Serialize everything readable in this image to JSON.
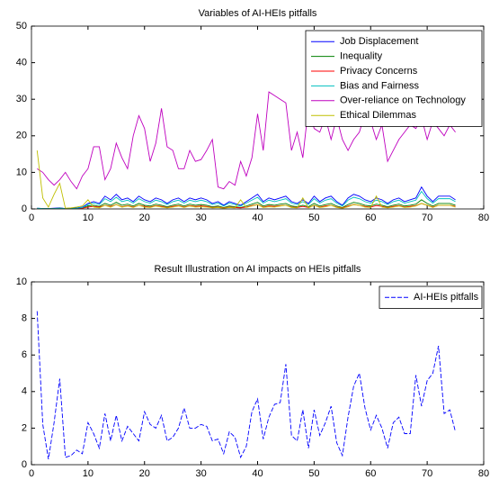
{
  "chart_data": [
    {
      "type": "line",
      "title": "Variables of AI-HEIs pitfalls",
      "x": [
        1,
        2,
        3,
        4,
        5,
        6,
        7,
        8,
        9,
        10,
        11,
        12,
        13,
        14,
        15,
        16,
        17,
        18,
        19,
        20,
        21,
        22,
        23,
        24,
        25,
        26,
        27,
        28,
        29,
        30,
        31,
        32,
        33,
        34,
        35,
        36,
        37,
        38,
        39,
        40,
        41,
        42,
        43,
        44,
        45,
        46,
        47,
        48,
        49,
        50,
        51,
        52,
        53,
        54,
        55,
        56,
        57,
        58,
        59,
        60,
        61,
        62,
        63,
        64,
        65,
        66,
        67,
        68,
        69,
        70,
        71,
        72,
        73,
        74,
        75
      ],
      "series": [
        {
          "name": "Job Displacement",
          "color": "#0000ff",
          "values": [
            0.2,
            0.1,
            0.1,
            0.2,
            0.3,
            0.1,
            0.2,
            0.3,
            0.5,
            1.5,
            2,
            1.5,
            3.5,
            2.5,
            4,
            2.5,
            3,
            2,
            3.5,
            2.5,
            2,
            3,
            2.5,
            1.5,
            2.5,
            3,
            2,
            3,
            2.5,
            3,
            2.5,
            1.5,
            2,
            1,
            2,
            1.5,
            1,
            2,
            3,
            4,
            2,
            3,
            2.5,
            3,
            3.5,
            2,
            1.5,
            2.5,
            1.5,
            3.5,
            2,
            3,
            3.5,
            2,
            1,
            3,
            4,
            3.5,
            2.5,
            2,
            3,
            2.5,
            1.5,
            2.5,
            3,
            2,
            2.5,
            3,
            6,
            3.5,
            2,
            3.5,
            3.5,
            3.5,
            2.5
          ]
        },
        {
          "name": "Inequality",
          "color": "#008000",
          "values": [
            0.1,
            0.1,
            0.1,
            0.1,
            0.2,
            0.1,
            0.1,
            0.2,
            0.3,
            0.8,
            1,
            0.7,
            1.5,
            1,
            1.8,
            1,
            1.3,
            0.8,
            1.5,
            1,
            0.8,
            1.3,
            1,
            0.6,
            1,
            1.3,
            0.8,
            1.3,
            1,
            1.2,
            1,
            0.6,
            0.8,
            0.4,
            0.8,
            0.6,
            0.4,
            0.8,
            1.3,
            1.8,
            0.8,
            1.2,
            1,
            1.3,
            1.5,
            0.8,
            0.6,
            1,
            0.6,
            1.5,
            0.8,
            1.2,
            1.5,
            0.8,
            0.4,
            1.2,
            1.8,
            1.5,
            1,
            0.8,
            1.3,
            1,
            0.6,
            1,
            1.3,
            0.8,
            1,
            1.3,
            2.5,
            1.5,
            0.8,
            1.5,
            1.5,
            1.5,
            1
          ]
        },
        {
          "name": "Privacy Concerns",
          "color": "#ff0000",
          "values": [
            0.1,
            0.1,
            0.1,
            0.1,
            0.1,
            0.1,
            0.1,
            0.1,
            0.2,
            0.5,
            0.7,
            0.5,
            1,
            0.7,
            1.2,
            0.6,
            0.9,
            0.5,
            1,
            0.7,
            0.5,
            0.9,
            0.7,
            0.4,
            0.7,
            0.9,
            0.5,
            0.9,
            0.7,
            0.8,
            0.7,
            0.4,
            0.5,
            0.3,
            0.5,
            0.4,
            0.3,
            0.5,
            0.9,
            1.2,
            0.5,
            0.8,
            0.7,
            0.9,
            1,
            0.5,
            0.4,
            0.7,
            0.4,
            1,
            0.5,
            0.8,
            1,
            0.5,
            0.3,
            0.8,
            1.2,
            1,
            0.7,
            0.5,
            0.9,
            0.7,
            0.4,
            0.7,
            0.9,
            0.5,
            0.7,
            0.9,
            1.5,
            1,
            0.5,
            1,
            1,
            1,
            0.7
          ]
        },
        {
          "name": "Bias and Fairness",
          "color": "#00bfbf",
          "values": [
            0.2,
            0.1,
            0.1,
            0.1,
            0.2,
            0.1,
            0.1,
            0.2,
            0.4,
            1.2,
            1.6,
            1.2,
            2.8,
            2,
            3.2,
            2,
            2.4,
            1.6,
            2.8,
            2,
            1.6,
            2.4,
            2,
            1.2,
            2,
            2.4,
            1.6,
            2.4,
            2,
            2.4,
            2,
            1.2,
            1.6,
            0.8,
            1.6,
            1.2,
            0.8,
            1.6,
            2.4,
            3.2,
            1.6,
            2.4,
            2,
            2.4,
            2.8,
            1.6,
            1.2,
            2,
            1.2,
            2.8,
            1.6,
            2.4,
            2.8,
            1.6,
            0.8,
            2.4,
            3.2,
            2.8,
            2,
            1.6,
            2.4,
            2,
            1.2,
            2,
            2.4,
            1.6,
            2,
            2.4,
            4.8,
            2.8,
            1.6,
            2.8,
            2.8,
            2.8,
            2
          ]
        },
        {
          "name": "Over-reliance on Technology",
          "color": "#bf00bf",
          "values": [
            11,
            10,
            8,
            6.5,
            8,
            10,
            7.5,
            5.5,
            9,
            11,
            17,
            17,
            8,
            11,
            18,
            14,
            11,
            20,
            25.5,
            22,
            13,
            18,
            27.5,
            17,
            16,
            11,
            11,
            16,
            13,
            13.5,
            16,
            19,
            6,
            5.5,
            7.5,
            6.5,
            13,
            9,
            14,
            26,
            16,
            32,
            31,
            30,
            29,
            16,
            21,
            14,
            28,
            22,
            21,
            25,
            19,
            25,
            19,
            16,
            19,
            21,
            26,
            24,
            19,
            23,
            13,
            16,
            19,
            21,
            23,
            22,
            25,
            19,
            24,
            22,
            20,
            23,
            21
          ]
        },
        {
          "name": "Ethical Dilemmas",
          "color": "#bfbf00",
          "values": [
            16,
            3,
            0.5,
            4,
            7,
            0.2,
            0.3,
            0.5,
            0.8,
            2.5,
            0.5,
            0.3,
            1,
            0.5,
            1.2,
            0.5,
            0.8,
            0.4,
            1,
            0.5,
            0.4,
            0.8,
            0.5,
            0.3,
            0.5,
            0.8,
            0.4,
            0.8,
            0.5,
            0.6,
            0.5,
            0.3,
            0.4,
            0.2,
            0.4,
            0.3,
            2.5,
            0.4,
            0.8,
            1.2,
            0.4,
            0.6,
            0.5,
            0.8,
            1,
            0.4,
            0.3,
            3,
            0.3,
            1,
            0.4,
            0.6,
            1,
            0.4,
            0.2,
            0.6,
            1.2,
            1,
            0.5,
            0.4,
            3.5,
            0.5,
            0.3,
            0.5,
            0.8,
            0.4,
            0.5,
            0.8,
            1.5,
            1,
            0.4,
            1,
            1,
            1,
            0.5
          ]
        }
      ],
      "xlim": [
        0,
        80
      ],
      "ylim": [
        0,
        50
      ],
      "xticks": [
        0,
        10,
        20,
        30,
        40,
        50,
        60,
        70,
        80
      ],
      "yticks": [
        0,
        10,
        20,
        30,
        40,
        50
      ],
      "legend": "upper right"
    },
    {
      "type": "line",
      "title": "Result Illustration on AI impacts on HEIs pitfalls",
      "x": [
        1,
        2,
        3,
        4,
        5,
        6,
        7,
        8,
        9,
        10,
        11,
        12,
        13,
        14,
        15,
        16,
        17,
        18,
        19,
        20,
        21,
        22,
        23,
        24,
        25,
        26,
        27,
        28,
        29,
        30,
        31,
        32,
        33,
        34,
        35,
        36,
        37,
        38,
        39,
        40,
        41,
        42,
        43,
        44,
        45,
        46,
        47,
        48,
        49,
        50,
        51,
        52,
        53,
        54,
        55,
        56,
        57,
        58,
        59,
        60,
        61,
        62,
        63,
        64,
        65,
        66,
        67,
        68,
        69,
        70,
        71,
        72,
        73,
        74,
        75
      ],
      "series": [
        {
          "name": "AI-HEIs pitfalls",
          "color": "#0000ff",
          "linestyle": "dashed",
          "values": [
            8.4,
            2.2,
            0.3,
            2.3,
            4.7,
            0.4,
            0.5,
            0.8,
            0.6,
            2.3,
            1.7,
            0.9,
            2.8,
            1.3,
            2.7,
            1.3,
            2.1,
            1.7,
            1.3,
            2.9,
            2.2,
            2.0,
            2.7,
            1.3,
            1.5,
            2.0,
            3.1,
            2.0,
            2.0,
            2.2,
            2.1,
            1.3,
            1.4,
            0.6,
            1.8,
            1.5,
            0.4,
            1.0,
            2.9,
            3.6,
            1.4,
            2.6,
            3.3,
            3.4,
            5.5,
            1.6,
            1.3,
            3.0,
            0.9,
            3.0,
            1.6,
            2.3,
            3.2,
            1.2,
            0.5,
            2.6,
            4.3,
            5.0,
            3.1,
            1.9,
            2.7,
            2.0,
            0.9,
            2.3,
            2.6,
            1.7,
            1.7,
            4.9,
            3.2,
            4.6,
            5.0,
            6.5,
            2.8,
            3.0,
            1.8
          ]
        }
      ],
      "xlim": [
        0,
        80
      ],
      "ylim": [
        0,
        10
      ],
      "xticks": [
        0,
        10,
        20,
        30,
        40,
        50,
        60,
        70,
        80
      ],
      "yticks": [
        0,
        2,
        4,
        6,
        8,
        10
      ],
      "legend": "upper right"
    }
  ]
}
